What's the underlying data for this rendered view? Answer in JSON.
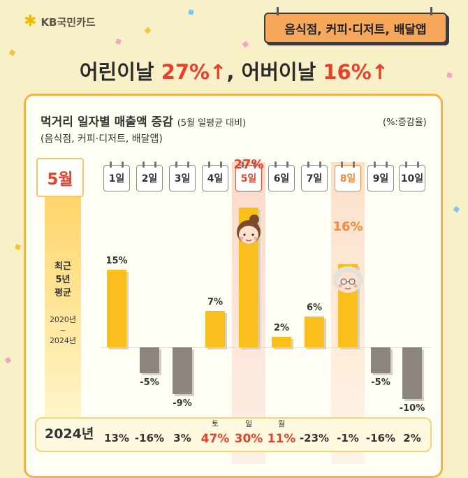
{
  "brand": {
    "name": "KB국민카드",
    "star_icon": "kb-star-icon",
    "color": "#f5b700"
  },
  "tag": "음식점, 커피·디저트, 배달앱",
  "headline": {
    "part1": "어린이날 ",
    "value1": "27%",
    "part2": ", 어버이날 ",
    "value2": "16%",
    "arrow": "↑",
    "accent_color": "#e8412b"
  },
  "chart_data": {
    "type": "bar",
    "title": "먹거리 일자별 매출액 증감",
    "title_note": "(5월 일평균 대비)",
    "subtitle": "(음식점, 커피·디저트, 배달앱)",
    "unit": "(%:증감율)",
    "month_label": "5월",
    "series_label": "최근 5년 평균",
    "series_label_lines": [
      "최근",
      "5년",
      "평균"
    ],
    "period_lines": [
      "2020년",
      "~",
      "2024년"
    ],
    "categories": [
      "1일",
      "2일",
      "3일",
      "4일",
      "5일",
      "6일",
      "7일",
      "8일",
      "9일",
      "10일"
    ],
    "values": [
      15,
      -5,
      -9,
      7,
      27,
      2,
      6,
      16,
      -5,
      -10
    ],
    "value_labels": [
      "15%",
      "-5%",
      "-9%",
      "7%",
      "27%",
      "2%",
      "6%",
      "16%",
      "-5%",
      "-10%"
    ],
    "highlight_index": [
      4,
      7
    ],
    "colors": {
      "positive": "#fbbf1d",
      "negative": "#8c857e",
      "highlight": "#e8412b",
      "highlight2": "#f08a3a"
    },
    "row_2024": {
      "label": "2024년",
      "values": [
        "13%",
        "-16%",
        "3%",
        "47%",
        "30%",
        "11%",
        "-23%",
        "-1%",
        "-16%",
        "2%"
      ],
      "weekdays": [
        "",
        "",
        "",
        "토",
        "일",
        "월",
        "",
        "",
        "",
        ""
      ],
      "highlight_index": [
        3,
        4,
        5
      ]
    }
  }
}
